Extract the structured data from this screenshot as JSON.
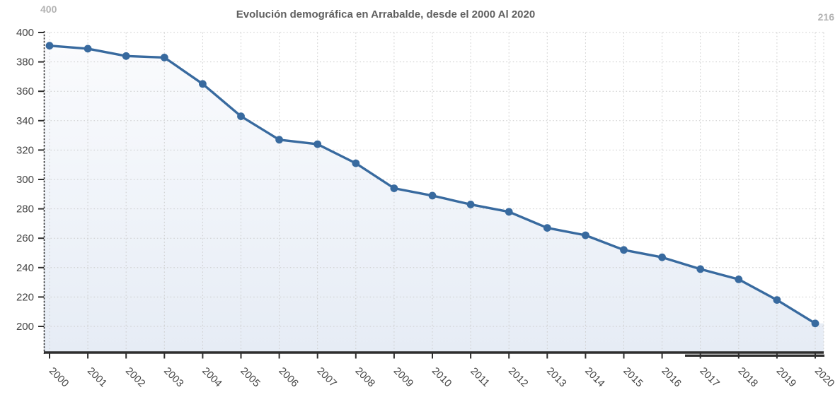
{
  "header": {
    "left_value": "400",
    "right_value": "216",
    "title": "Evolución demográfica en Arrabalde, desde el 2000 Al 2020"
  },
  "chart_data": {
    "type": "area",
    "title": "Evolución demográfica en Arrabalde, desde el 2000 Al 2020",
    "categories": [
      "2000",
      "2001",
      "2002",
      "2003",
      "2004",
      "2005",
      "2006",
      "2007",
      "2008",
      "2009",
      "2010",
      "2011",
      "2012",
      "2013",
      "2014",
      "2015",
      "2016",
      "2017",
      "2018",
      "2019",
      "2020"
    ],
    "values": [
      391,
      389,
      384,
      383,
      365,
      343,
      327,
      324,
      311,
      294,
      289,
      283,
      278,
      267,
      262,
      252,
      247,
      239,
      232,
      218,
      202
    ],
    "xlabel": "",
    "ylabel": "",
    "ylim": [
      200,
      400
    ],
    "yticks": [
      200,
      220,
      240,
      260,
      280,
      300,
      320,
      340,
      360,
      380,
      400
    ],
    "grid": "dotted",
    "legend": false,
    "colors": {
      "line": "#386a9f",
      "marker": "#386a9f",
      "area_top": "#fafbfd",
      "area_mid": "#eff3f9",
      "area_bottom": "#e6ecf5",
      "gridline": "#cbcbcb",
      "axis": "#2e2e2e",
      "tick_label": "#454545",
      "title": "#5f5f5f",
      "corner_label": "#b2b2b2"
    }
  }
}
